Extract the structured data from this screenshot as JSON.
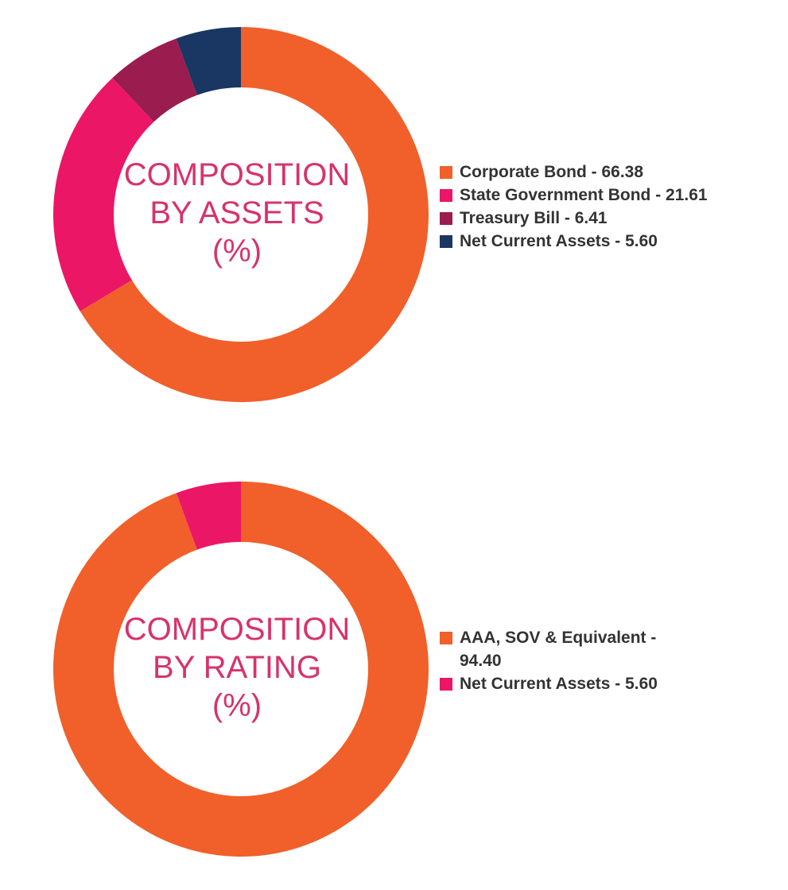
{
  "chart_data": [
    {
      "type": "pie",
      "center_label": [
        "COMPOSITION",
        "BY ASSETS",
        "(%)"
      ],
      "slices": [
        {
          "label": "Corporate Bond - 66.38",
          "value": 66.38,
          "color": "#f15f2a"
        },
        {
          "label": "State Government Bond - 21.61",
          "value": 21.61,
          "color": "#eb1666"
        },
        {
          "label": "Treasury Bill - 6.41",
          "value": 6.41,
          "color": "#9b1c4e"
        },
        {
          "label": "Net Current Assets - 5.60",
          "value": 5.6,
          "color": "#1a3662"
        }
      ],
      "legend_position": "right"
    },
    {
      "type": "pie",
      "center_label": [
        "COMPOSITION",
        "BY RATING",
        "(%)"
      ],
      "slices": [
        {
          "label": "AAA, SOV & Equivalent - 94.40",
          "value": 94.4,
          "color": "#f15f2a"
        },
        {
          "label": "Net Current Assets - 5.60",
          "value": 5.6,
          "color": "#eb1666"
        }
      ],
      "legend_position": "right"
    }
  ],
  "colors": {
    "center_text": "#d6336c",
    "legend_text": "#333333"
  }
}
